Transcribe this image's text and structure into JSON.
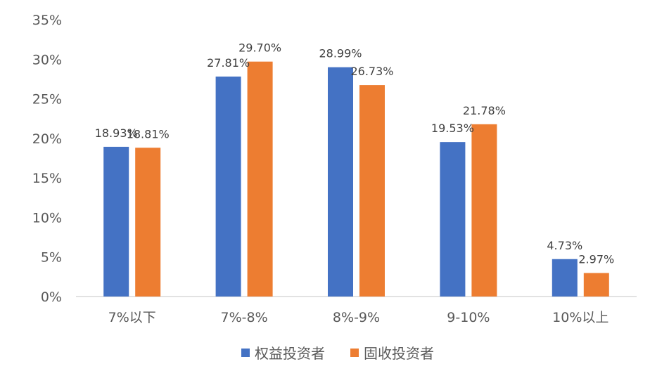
{
  "chart_data": {
    "type": "bar",
    "title": "",
    "xlabel": "",
    "ylabel": "",
    "categories": [
      "7%以下",
      "7%-8%",
      "8%-9%",
      "9-10%",
      "10%以上"
    ],
    "series": [
      {
        "name": "权益投资者",
        "color": "#4472C4",
        "values": [
          18.93,
          27.81,
          28.99,
          19.53,
          4.73
        ],
        "labels": [
          "18.93%",
          "27.81%",
          "28.99%",
          "19.53%",
          "4.73%"
        ]
      },
      {
        "name": "固收投资者",
        "color": "#ED7D31",
        "values": [
          18.81,
          29.7,
          26.73,
          21.78,
          2.97
        ],
        "labels": [
          "18.81%",
          "29.70%",
          "26.73%",
          "21.78%",
          "2.97%"
        ]
      }
    ],
    "ylim": [
      0,
      35
    ],
    "yticks": [
      0,
      5,
      10,
      15,
      20,
      25,
      30,
      35
    ],
    "ytick_labels": [
      "0%",
      "5%",
      "10%",
      "15%",
      "20%",
      "25%",
      "30%",
      "35%"
    ],
    "grid": false,
    "legend_position": "bottom"
  }
}
